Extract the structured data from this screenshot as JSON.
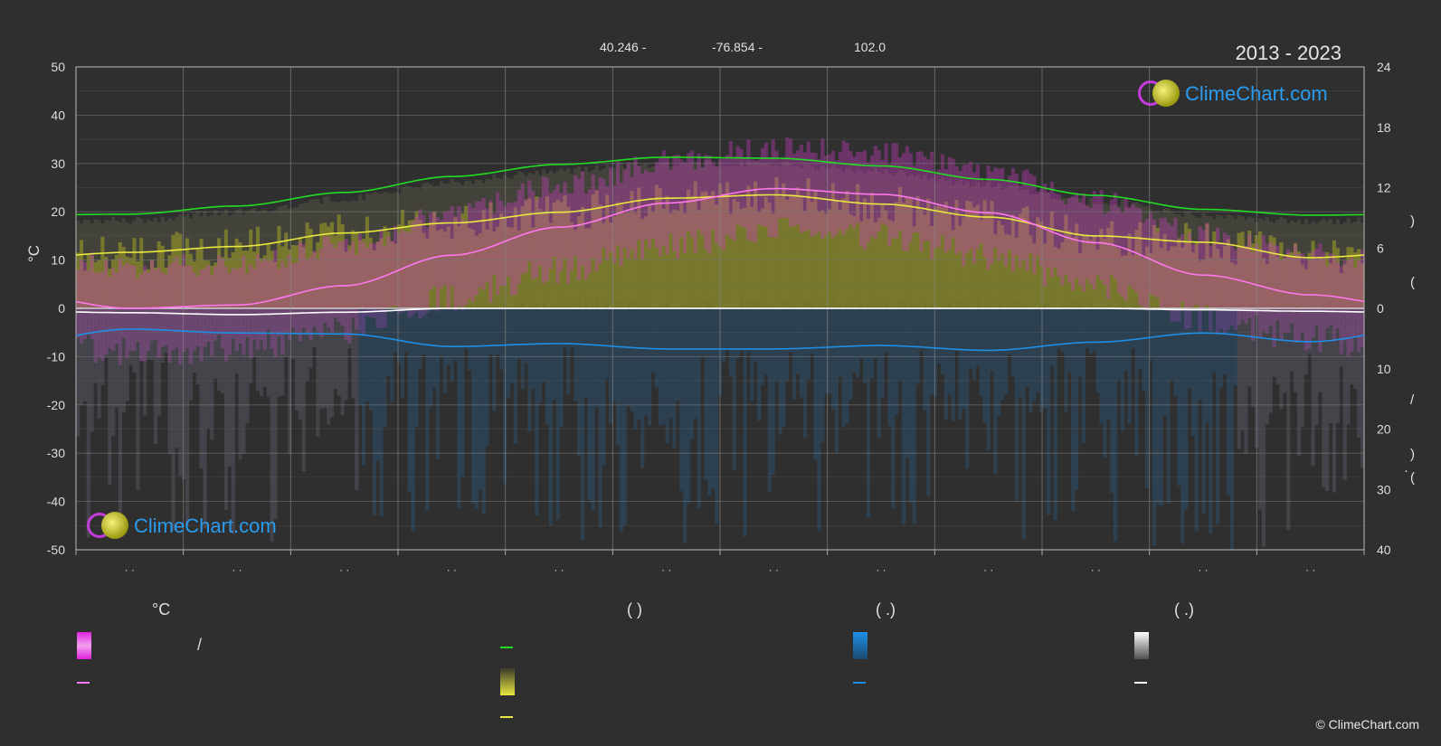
{
  "header": {
    "lat": "40.246 -",
    "lon": "-76.854 -",
    "elev": "102.0",
    "years": "2013 - 2023"
  },
  "axes": {
    "left_unit": "°C",
    "left_ticks": [
      "50",
      "40",
      "30",
      "20",
      "10",
      "0",
      "-10",
      "-20",
      "-30",
      "-40",
      "-50"
    ],
    "right_ticks_top": [
      "24",
      "18",
      "12",
      "6",
      "0"
    ],
    "right_ticks_bottom": [
      "10",
      "20",
      "30",
      "40"
    ],
    "right_fragments": [
      ")",
      "(",
      "/",
      ")",
      "(",
      "·"
    ],
    "x_ticks": [
      "· ·",
      "· ·",
      "· ·",
      "· ·",
      "· ·",
      "· ·",
      "· ·",
      "· ·",
      "· ·",
      "· ·",
      "· ·",
      "· ·"
    ]
  },
  "legend": {
    "col1_head": "°C",
    "col1_row1_sep": "/",
    "col2_head": "(          )",
    "col3_head": "(   .)",
    "col4_head": "(   .)"
  },
  "logo_text": "ClimeChart.com",
  "copyright": "© ClimeChart.com",
  "colors": {
    "background": "#2f2f2f",
    "daylight": "#22dd22",
    "sunshine": "#e8e840",
    "temp_mean": "#ff77ee",
    "temp_band": "#dd22dd",
    "precip": "#1e8fe8",
    "snow": "#ffffff"
  },
  "chart_data": {
    "type": "line",
    "x": [
      1,
      2,
      3,
      4,
      5,
      6,
      7,
      8,
      9,
      10,
      11,
      12
    ],
    "ylim_left": [
      -50,
      50
    ],
    "ylim_right_top": [
      0,
      24
    ],
    "ylim_right_bottom": [
      0,
      40
    ],
    "series": [
      {
        "values": [
          19.5,
          21.2,
          24.0,
          27.3,
          29.8,
          31.3,
          31.1,
          29.5,
          26.7,
          23.4,
          20.5,
          19.3
        ]
      },
      {
        "values": [
          11.6,
          12.8,
          15.6,
          17.7,
          19.9,
          22.8,
          23.5,
          21.6,
          18.9,
          15.0,
          13.7,
          10.5
        ]
      },
      {
        "values": [
          0.0,
          0.7,
          4.7,
          11.0,
          16.8,
          21.8,
          24.8,
          23.6,
          19.8,
          13.6,
          6.9,
          2.8
        ]
      },
      {
        "values": [
          -0.9,
          -1.3,
          -0.8,
          0.0,
          0.0,
          0.0,
          0.0,
          0.0,
          0.0,
          0.0,
          -0.3,
          -0.6
        ]
      },
      {
        "values": [
          -4.3,
          -5.1,
          -5.3,
          -7.9,
          -7.3,
          -8.4,
          -8.4,
          -7.7,
          -8.7,
          -7.0,
          -5.1,
          -6.9
        ]
      }
    ]
  }
}
